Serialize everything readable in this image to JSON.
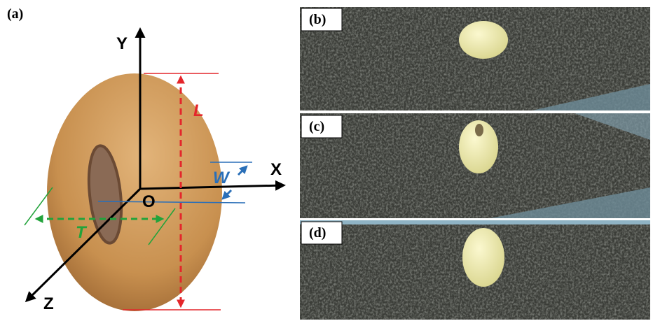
{
  "panels": [
    {
      "label": "(a)",
      "axes": {
        "y": "Y",
        "x": "X",
        "z": "Z",
        "origin": "O"
      },
      "dimensions": {
        "length": "L",
        "width": "W",
        "thickness": "T"
      }
    },
    {
      "label": "(b)"
    },
    {
      "label": "(c)"
    },
    {
      "label": "(d)"
    }
  ]
}
